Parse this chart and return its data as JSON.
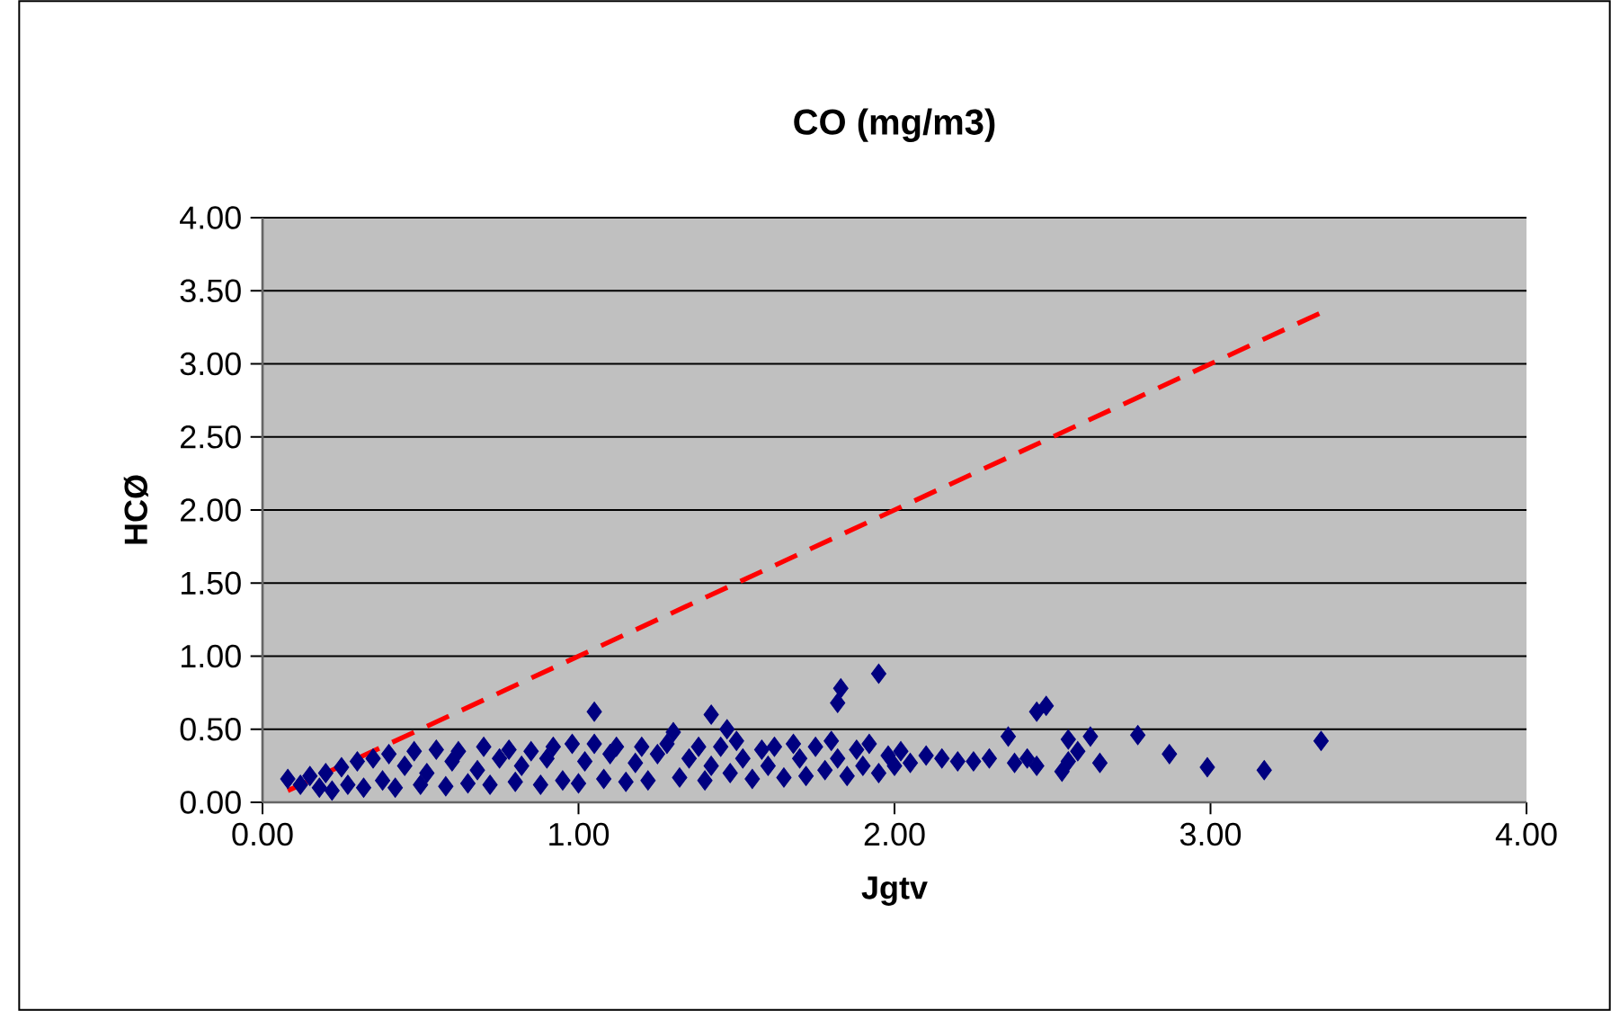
{
  "chart_data": {
    "type": "scatter",
    "title": "CO (mg/m3)",
    "xlabel": "Jgtv",
    "ylabel": "HCØ",
    "xlim": [
      0,
      4
    ],
    "ylim": [
      0,
      4
    ],
    "xticks": [
      {
        "value": 0,
        "label": "0.00"
      },
      {
        "value": 1,
        "label": "1.00"
      },
      {
        "value": 2,
        "label": "2.00"
      },
      {
        "value": 3,
        "label": "3.00"
      },
      {
        "value": 4,
        "label": "4.00"
      }
    ],
    "yticks": [
      {
        "value": 0,
        "label": "0.00"
      },
      {
        "value": 0.5,
        "label": "0.50"
      },
      {
        "value": 1,
        "label": "1.00"
      },
      {
        "value": 1.5,
        "label": "1.50"
      },
      {
        "value": 2,
        "label": "2.00"
      },
      {
        "value": 2.5,
        "label": "2.50"
      },
      {
        "value": 3,
        "label": "3.00"
      },
      {
        "value": 3.5,
        "label": "3.50"
      },
      {
        "value": 4,
        "label": "4.00"
      }
    ],
    "grid": "y",
    "marker": "diamond",
    "series": [
      {
        "color": "#000080",
        "x": [
          0.08,
          0.12,
          0.15,
          0.18,
          0.2,
          0.22,
          0.25,
          0.27,
          0.3,
          0.32,
          0.35,
          0.38,
          0.4,
          0.42,
          0.45,
          0.48,
          0.5,
          0.52,
          0.55,
          0.58,
          0.6,
          0.62,
          0.65,
          0.68,
          0.7,
          0.72,
          0.75,
          0.78,
          0.8,
          0.82,
          0.85,
          0.88,
          0.9,
          0.92,
          0.95,
          0.98,
          1.0,
          1.02,
          1.05,
          1.08,
          1.1,
          1.12,
          1.15,
          1.18,
          1.2,
          1.22,
          1.25,
          1.28,
          1.3,
          1.32,
          1.35,
          1.38,
          1.4,
          1.42,
          1.45,
          1.48,
          1.5,
          1.52,
          1.55,
          1.58,
          1.6,
          1.62,
          1.65,
          1.68,
          1.7,
          1.72,
          1.75,
          1.78,
          1.8,
          1.82,
          1.85,
          1.88,
          1.9,
          1.92,
          1.95,
          1.98,
          2.0,
          2.02,
          1.05,
          1.42,
          1.47,
          1.82,
          1.83,
          1.95,
          2.45,
          2.48,
          2.36,
          2.55,
          2.62,
          2.77,
          2.87,
          2.99,
          3.17,
          3.35,
          2.65,
          2.55,
          2.53,
          2.58,
          2.42,
          2.45,
          2.38,
          2.3,
          2.25,
          2.2,
          2.15,
          2.1,
          2.05
        ],
        "values": [
          0.16,
          0.12,
          0.18,
          0.1,
          0.2,
          0.08,
          0.24,
          0.12,
          0.28,
          0.1,
          0.3,
          0.15,
          0.33,
          0.1,
          0.25,
          0.35,
          0.12,
          0.2,
          0.36,
          0.11,
          0.28,
          0.35,
          0.13,
          0.22,
          0.38,
          0.12,
          0.3,
          0.36,
          0.14,
          0.25,
          0.35,
          0.12,
          0.3,
          0.38,
          0.15,
          0.4,
          0.13,
          0.28,
          0.4,
          0.16,
          0.33,
          0.38,
          0.14,
          0.27,
          0.38,
          0.15,
          0.33,
          0.4,
          0.48,
          0.17,
          0.3,
          0.38,
          0.15,
          0.25,
          0.38,
          0.2,
          0.42,
          0.3,
          0.16,
          0.36,
          0.25,
          0.38,
          0.17,
          0.4,
          0.3,
          0.18,
          0.38,
          0.22,
          0.42,
          0.3,
          0.18,
          0.36,
          0.25,
          0.4,
          0.2,
          0.32,
          0.25,
          0.35,
          0.62,
          0.6,
          0.5,
          0.68,
          0.78,
          0.88,
          0.62,
          0.66,
          0.45,
          0.43,
          0.45,
          0.46,
          0.33,
          0.24,
          0.22,
          0.42,
          0.27,
          0.28,
          0.21,
          0.35,
          0.3,
          0.25,
          0.27,
          0.3,
          0.28,
          0.28,
          0.3,
          0.32,
          0.27
        ]
      },
      {
        "type": "line",
        "color": "#ff0000",
        "line_style": "dashed",
        "marker": "none",
        "x": [
          0.08,
          3.35
        ],
        "values": [
          0.08,
          3.35
        ]
      }
    ]
  }
}
